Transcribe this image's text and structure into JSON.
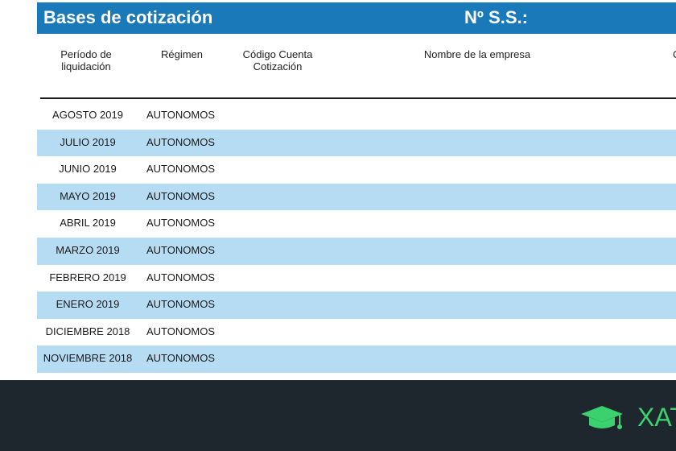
{
  "title": {
    "left": "Bases de cotización",
    "right": "Nº S.S.:"
  },
  "columns": {
    "periodo": "Período de liquidación",
    "regimen": "Régimen",
    "codigo": "Código Cuenta Cotización",
    "nombre": "Nombre de la empresa",
    "cut_letter": "C"
  },
  "rows": [
    {
      "periodo": "AGOSTO 2019",
      "regimen": "AUTONOMOS"
    },
    {
      "periodo": "JULIO 2019",
      "regimen": "AUTONOMOS"
    },
    {
      "periodo": "JUNIO 2019",
      "regimen": "AUTONOMOS"
    },
    {
      "periodo": "MAYO 2019",
      "regimen": "AUTONOMOS"
    },
    {
      "periodo": "ABRIL 2019",
      "regimen": "AUTONOMOS"
    },
    {
      "periodo": "MARZO 2019",
      "regimen": "AUTONOMOS"
    },
    {
      "periodo": "FEBRERO 2019",
      "regimen": "AUTONOMOS"
    },
    {
      "periodo": "ENERO 2019",
      "regimen": "AUTONOMOS"
    },
    {
      "periodo": "DICIEMBRE 2018",
      "regimen": "AUTONOMOS"
    },
    {
      "periodo": "NOVIEMBRE 2018",
      "regimen": "AUTONOMOS"
    }
  ],
  "footer": {
    "brand_text": "XAT",
    "logo_icon": "graduation-cap-icon"
  },
  "colors": {
    "title_bar": "#1a7ab9",
    "row_alt": "#b6dcf4",
    "footer_bg": "#1e272e",
    "brand_green": "#3bd16f"
  }
}
